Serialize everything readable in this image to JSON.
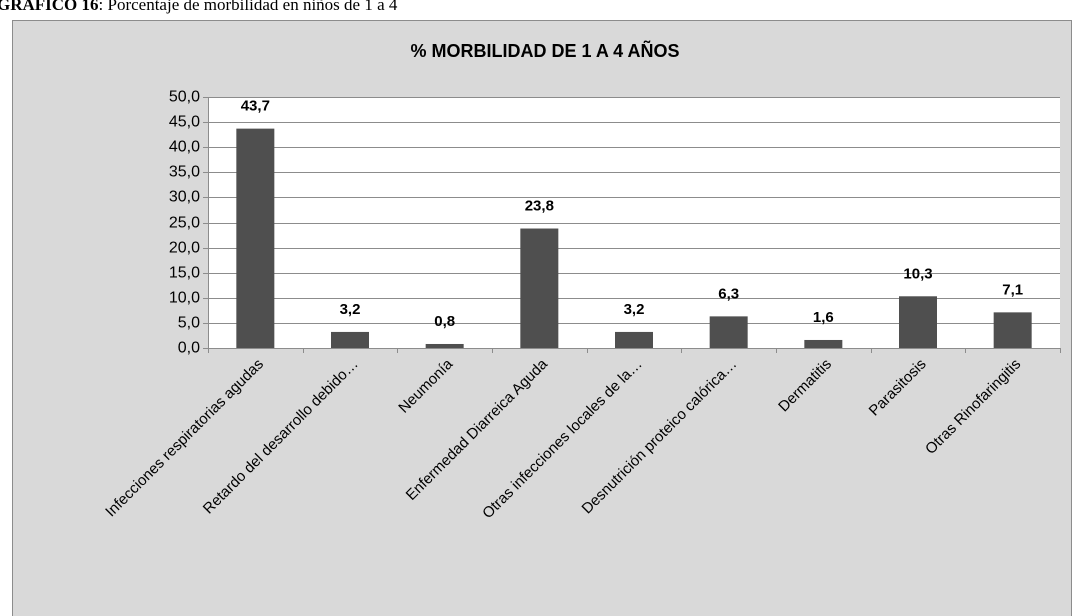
{
  "caption": {
    "label": "GRÁFICO 16",
    "text": ": Porcentaje de morbilidad en niños de 1 a 4"
  },
  "chart_data": {
    "type": "bar",
    "title": "% MORBILIDAD DE 1 A 4 AÑOS",
    "categories": [
      "Infecciones respiratorias agudas",
      "Retardo del desarrollo debido…",
      "Neumonía",
      "Enfermedad Diarreica Aguda",
      "Otras infecciones locales de la…",
      "Desnutrición proteico calórica…",
      "Dermatitis",
      "Parasitosis",
      "Otras Rinofaringitis"
    ],
    "values": [
      43.7,
      3.2,
      0.8,
      23.8,
      3.2,
      6.3,
      1.6,
      10.3,
      7.1
    ],
    "value_labels": [
      "43,7",
      "3,2",
      "0,8",
      "23,8",
      "3,2",
      "6,3",
      "1,6",
      "10,3",
      "7,1"
    ],
    "color": "#4f4f4f",
    "ylim": [
      0,
      50
    ],
    "yticks": [
      {
        "value": 0,
        "label": "0,0"
      },
      {
        "value": 5,
        "label": "5,0"
      },
      {
        "value": 10,
        "label": "10,0"
      },
      {
        "value": 15,
        "label": "15,0"
      },
      {
        "value": 20,
        "label": "20,0"
      },
      {
        "value": 25,
        "label": "25,0"
      },
      {
        "value": 30,
        "label": "30,0"
      },
      {
        "value": 35,
        "label": "35,0"
      },
      {
        "value": 40,
        "label": "40,0"
      },
      {
        "value": 45,
        "label": "45,0"
      },
      {
        "value": 50,
        "label": "50,0"
      }
    ],
    "grid": true
  }
}
